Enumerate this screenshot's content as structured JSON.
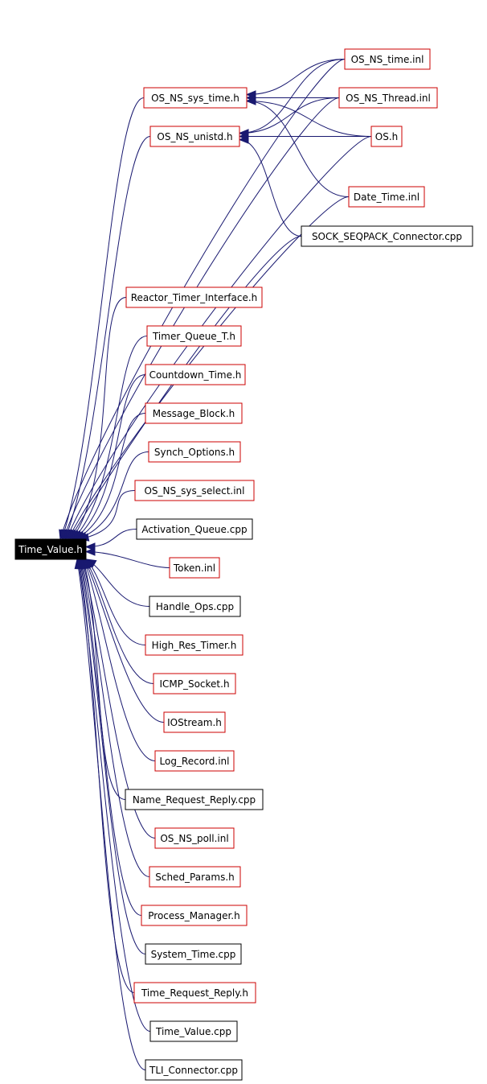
{
  "graph": {
    "root": {
      "label": "Time_Value.h"
    },
    "nodes": [
      {
        "id": "os_ns_time_inl",
        "label": "OS_NS_time.inl",
        "style": "red"
      },
      {
        "id": "os_ns_sys_time_h",
        "label": "OS_NS_sys_time.h",
        "style": "red"
      },
      {
        "id": "os_ns_thread_inl",
        "label": "OS_NS_Thread.inl",
        "style": "red"
      },
      {
        "id": "os_ns_unistd_h",
        "label": "OS_NS_unistd.h",
        "style": "red"
      },
      {
        "id": "os_h",
        "label": "OS.h",
        "style": "red"
      },
      {
        "id": "date_time_inl",
        "label": "Date_Time.inl",
        "style": "red"
      },
      {
        "id": "sock_seqpack_connector_cpp",
        "label": "SOCK_SEQPACK_Connector.cpp",
        "style": "black"
      },
      {
        "id": "reactor_timer_interface_h",
        "label": "Reactor_Timer_Interface.h",
        "style": "red"
      },
      {
        "id": "timer_queue_t_h",
        "label": "Timer_Queue_T.h",
        "style": "red"
      },
      {
        "id": "countdown_time_h",
        "label": "Countdown_Time.h",
        "style": "red"
      },
      {
        "id": "message_block_h",
        "label": "Message_Block.h",
        "style": "red"
      },
      {
        "id": "synch_options_h",
        "label": "Synch_Options.h",
        "style": "red"
      },
      {
        "id": "os_ns_sys_select_inl",
        "label": "OS_NS_sys_select.inl",
        "style": "red"
      },
      {
        "id": "activation_queue_cpp",
        "label": "Activation_Queue.cpp",
        "style": "black"
      },
      {
        "id": "token_inl",
        "label": "Token.inl",
        "style": "red"
      },
      {
        "id": "handle_ops_cpp",
        "label": "Handle_Ops.cpp",
        "style": "black"
      },
      {
        "id": "high_res_timer_h",
        "label": "High_Res_Timer.h",
        "style": "red"
      },
      {
        "id": "icmp_socket_h",
        "label": "ICMP_Socket.h",
        "style": "red"
      },
      {
        "id": "iostream_h",
        "label": "IOStream.h",
        "style": "red"
      },
      {
        "id": "log_record_inl",
        "label": "Log_Record.inl",
        "style": "red"
      },
      {
        "id": "name_request_reply_cpp",
        "label": "Name_Request_Reply.cpp",
        "style": "black"
      },
      {
        "id": "os_ns_poll_inl",
        "label": "OS_NS_poll.inl",
        "style": "red"
      },
      {
        "id": "sched_params_h",
        "label": "Sched_Params.h",
        "style": "red"
      },
      {
        "id": "process_manager_h",
        "label": "Process_Manager.h",
        "style": "red"
      },
      {
        "id": "system_time_cpp",
        "label": "System_Time.cpp",
        "style": "black"
      },
      {
        "id": "time_request_reply_h",
        "label": "Time_Request_Reply.h",
        "style": "red"
      },
      {
        "id": "time_value_cpp",
        "label": "Time_Value.cpp",
        "style": "black"
      },
      {
        "id": "tli_connector_cpp",
        "label": "TLI_Connector.cpp",
        "style": "black"
      }
    ],
    "edges": [
      {
        "from": "os_ns_time_inl",
        "to": "os_ns_sys_time_h"
      },
      {
        "from": "os_ns_thread_inl",
        "to": "os_ns_sys_time_h"
      },
      {
        "from": "os_h",
        "to": "os_ns_sys_time_h"
      },
      {
        "from": "date_time_inl",
        "to": "os_ns_sys_time_h"
      },
      {
        "from": "os_ns_time_inl",
        "to": "os_ns_unistd_h"
      },
      {
        "from": "os_ns_thread_inl",
        "to": "os_ns_unistd_h"
      },
      {
        "from": "os_h",
        "to": "os_ns_unistd_h"
      },
      {
        "from": "sock_seqpack_connector_cpp",
        "to": "os_ns_unistd_h"
      }
    ],
    "colors": {
      "edge": "#191970",
      "red_border": "#cc0000",
      "black_border": "#000000",
      "root_fill": "#000000",
      "root_text": "#ffffff"
    }
  }
}
